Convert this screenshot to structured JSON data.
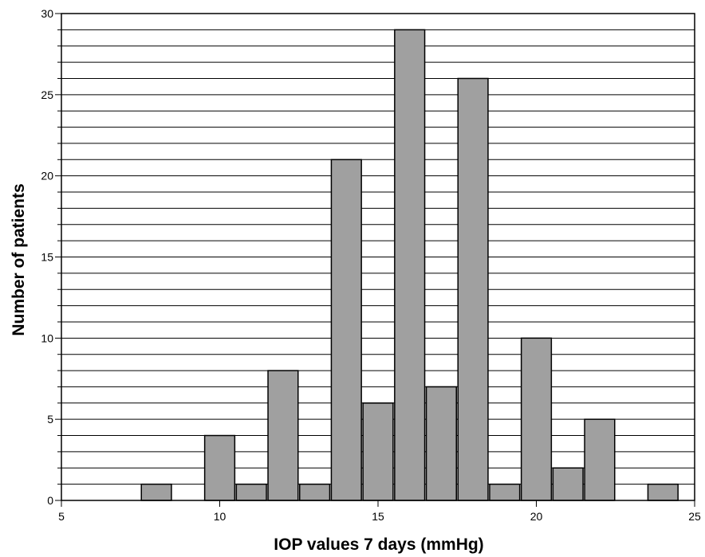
{
  "chart_data": {
    "type": "bar",
    "xlabel": "IOP values 7 days (mmHg)",
    "ylabel": "Number of patients",
    "xlim": [
      5,
      25
    ],
    "ylim": [
      0,
      30
    ],
    "x_ticks": [
      5,
      10,
      15,
      20,
      25
    ],
    "y_ticks": [
      0,
      5,
      10,
      15,
      20,
      25,
      30
    ],
    "y_minor_step": 1,
    "grid": "horizontal",
    "bar_color": "#a0a0a0",
    "bar_width": 0.95,
    "bars": [
      {
        "x": 8,
        "value": 1
      },
      {
        "x": 10,
        "value": 4
      },
      {
        "x": 11,
        "value": 1
      },
      {
        "x": 12,
        "value": 8
      },
      {
        "x": 13,
        "value": 1
      },
      {
        "x": 14,
        "value": 21
      },
      {
        "x": 15,
        "value": 6
      },
      {
        "x": 16,
        "value": 29
      },
      {
        "x": 17,
        "value": 7
      },
      {
        "x": 18,
        "value": 26
      },
      {
        "x": 19,
        "value": 1
      },
      {
        "x": 20,
        "value": 10
      },
      {
        "x": 21,
        "value": 2
      },
      {
        "x": 22,
        "value": 5
      },
      {
        "x": 24,
        "value": 1
      }
    ]
  }
}
